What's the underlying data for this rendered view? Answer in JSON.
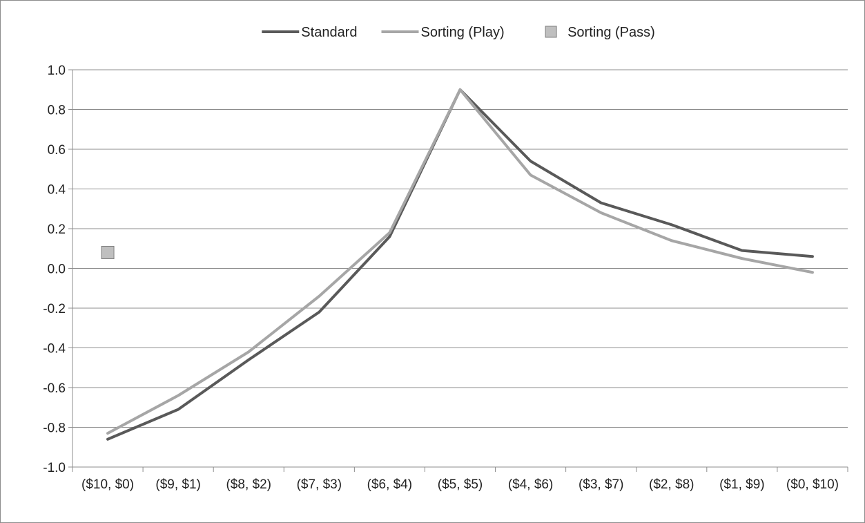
{
  "chart_data": {
    "type": "line",
    "title": "",
    "xlabel": "",
    "ylabel": "",
    "categories": [
      "($10, $0)",
      "($9, $1)",
      "($8, $2)",
      "($7, $3)",
      "($6, $4)",
      "($5, $5)",
      "($4, $6)",
      "($3, $7)",
      "($2, $8)",
      "($1, $9)",
      "($0, $10)"
    ],
    "ylim": [
      -1.0,
      1.0
    ],
    "yticks": [
      1.0,
      0.8,
      0.6,
      0.4,
      0.2,
      0.0,
      -0.2,
      -0.4,
      -0.6,
      -0.8,
      -1.0
    ],
    "ytick_labels": [
      "1.0",
      "0.8",
      "0.6",
      "0.4",
      "0.2",
      "0.0",
      "-0.2",
      "-0.4",
      "-0.6",
      "-0.8",
      "-1.0"
    ],
    "grid": true,
    "legend_position": "top",
    "series": [
      {
        "name": "Standard",
        "kind": "line",
        "color": "#595959",
        "values": [
          -0.86,
          -0.71,
          -0.46,
          -0.22,
          0.16,
          0.9,
          0.54,
          0.33,
          0.22,
          0.09,
          0.06
        ]
      },
      {
        "name": "Sorting (Play)",
        "kind": "line",
        "color": "#a6a6a6",
        "values": [
          -0.83,
          -0.64,
          -0.42,
          -0.14,
          0.18,
          0.9,
          0.47,
          0.28,
          0.14,
          0.05,
          -0.02
        ]
      },
      {
        "name": "Sorting (Pass)",
        "kind": "marker",
        "color": "#bfbfbf",
        "values": [
          0.08,
          null,
          null,
          null,
          null,
          null,
          null,
          null,
          null,
          null,
          null
        ]
      }
    ]
  }
}
